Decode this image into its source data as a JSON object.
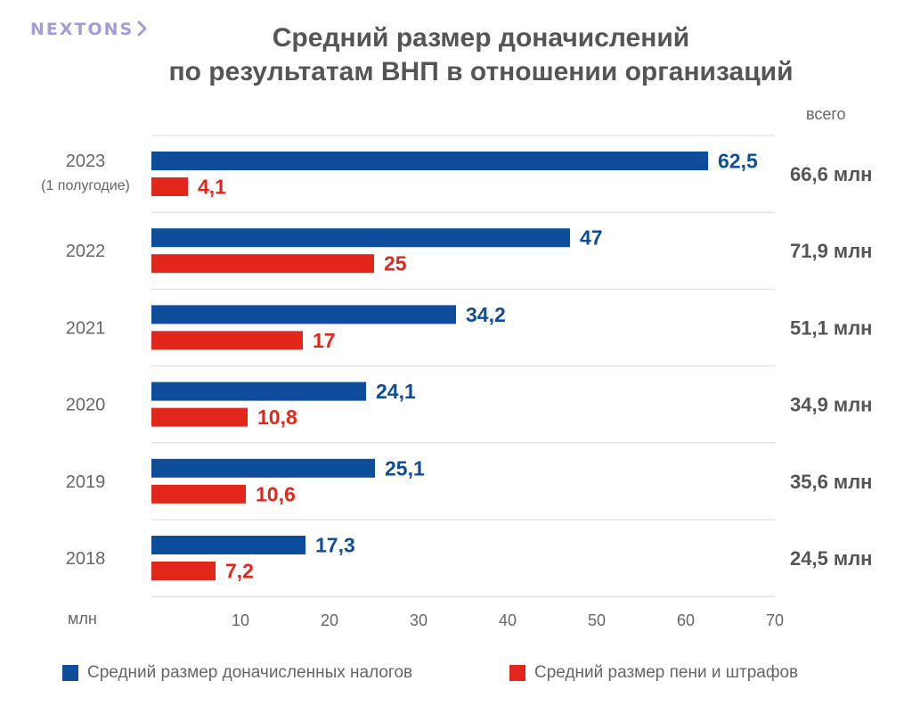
{
  "brand": {
    "logo": "NEXTONS",
    "logo_icon": "chevron-right-icon"
  },
  "chart_data": {
    "type": "bar",
    "orientation": "horizontal",
    "title_line1": "Средний размер доначислений",
    "title_line2": "по результатам ВНП в отношении организаций",
    "categories": [
      {
        "label": "2023",
        "sublabel": "(1 полугодие)"
      },
      {
        "label": "2022",
        "sublabel": ""
      },
      {
        "label": "2021",
        "sublabel": ""
      },
      {
        "label": "2020",
        "sublabel": ""
      },
      {
        "label": "2019",
        "sublabel": ""
      },
      {
        "label": "2018",
        "sublabel": ""
      }
    ],
    "series": [
      {
        "name": "Средний размер доначисленных налогов",
        "color": "#0e4c9c",
        "values": [
          62.5,
          47,
          34.2,
          24.1,
          25.1,
          17.3
        ],
        "labels": [
          "62,5",
          "47",
          "34,2",
          "24,1",
          "25,1",
          "17,3"
        ]
      },
      {
        "name": "Средний размер пени и штрафов",
        "color": "#e1261c",
        "values": [
          4.1,
          25,
          17,
          10.8,
          10.6,
          7.2
        ],
        "labels": [
          "4,1",
          "25",
          "17",
          "10,8",
          "10,6",
          "7,2"
        ]
      }
    ],
    "totals_header": "всего",
    "totals": [
      "66,6 млн",
      "71,9 млн",
      "51,1 млн",
      "34,9 млн",
      "35,6 млн",
      "24,5 млн"
    ],
    "xaxis_unit": "млн",
    "xticks": [
      10,
      20,
      30,
      40,
      50,
      60,
      70
    ],
    "xlim": [
      0,
      70
    ],
    "grid": "horizontal separators"
  }
}
